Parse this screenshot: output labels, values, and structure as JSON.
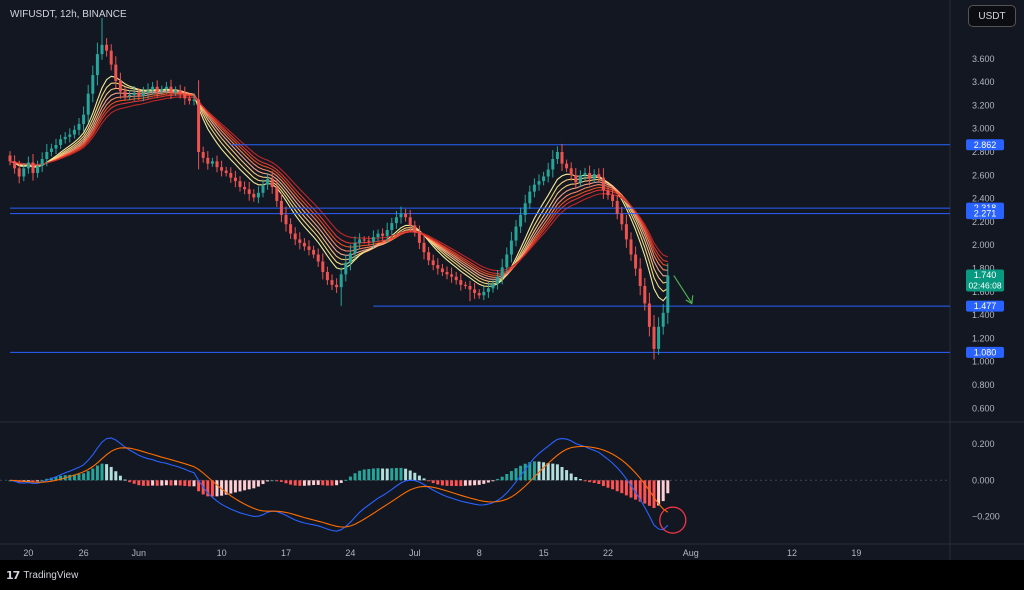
{
  "symbol_label": "WIFUSDT, 12h, BINANCE",
  "currency_button": "USDT",
  "brand": {
    "logo_glyph": "17",
    "name": "TradingView"
  },
  "colors": {
    "background": "#131722",
    "up_candle": "#26a69a",
    "down_candle": "#ef5350",
    "level_line": "#2962ff",
    "label_blue": "#2962ff",
    "label_green": "#089981",
    "macd_line": "#2962ff",
    "signal_line": "#ff6d00",
    "annotation": "#f23645",
    "arrow": "#4caf50"
  },
  "chart_data": [
    {
      "type": "candlestick",
      "title": "WIFUSDT, 12h, BINANCE",
      "ylim": [
        0.5,
        3.95
      ],
      "y_ticks": [
        "3.600",
        "3.400",
        "3.200",
        "3.000",
        "2.800",
        "2.600",
        "2.400",
        "2.200",
        "2.000",
        "1.800",
        "1.600",
        "1.400",
        "1.200",
        "1.000",
        "0.800",
        "0.600"
      ],
      "x_ticks": [
        {
          "label": "20",
          "index": 4
        },
        {
          "label": "26",
          "index": 16
        },
        {
          "label": "Jun",
          "index": 28
        },
        {
          "label": "10",
          "index": 46
        },
        {
          "label": "17",
          "index": 60
        },
        {
          "label": "24",
          "index": 74
        },
        {
          "label": "Jul",
          "index": 88
        },
        {
          "label": "8",
          "index": 102
        },
        {
          "label": "15",
          "index": 116
        },
        {
          "label": "22",
          "index": 130
        },
        {
          "label": "Aug",
          "index": 148
        },
        {
          "label": "12",
          "index": 170
        },
        {
          "label": "19",
          "index": 184
        }
      ],
      "closes": [
        2.72,
        2.66,
        2.59,
        2.66,
        2.71,
        2.62,
        2.68,
        2.74,
        2.8,
        2.83,
        2.86,
        2.91,
        2.93,
        2.95,
        2.99,
        3.04,
        3.12,
        3.3,
        3.46,
        3.64,
        3.72,
        3.67,
        3.55,
        3.41,
        3.32,
        3.28,
        3.29,
        3.31,
        3.28,
        3.31,
        3.33,
        3.36,
        3.32,
        3.34,
        3.36,
        3.31,
        3.33,
        3.3,
        3.26,
        3.24,
        3.25,
        2.8,
        2.75,
        2.7,
        2.72,
        2.67,
        2.64,
        2.62,
        2.58,
        2.55,
        2.5,
        2.48,
        2.44,
        2.41,
        2.45,
        2.52,
        2.57,
        2.5,
        2.38,
        2.26,
        2.18,
        2.1,
        2.05,
        2.02,
        1.99,
        1.96,
        1.92,
        1.86,
        1.77,
        1.7,
        1.66,
        1.64,
        1.75,
        1.85,
        1.93,
        2.02,
        2.05,
        2.04,
        2.03,
        2.07,
        2.1,
        2.08,
        2.13,
        2.19,
        2.24,
        2.27,
        2.24,
        2.17,
        2.11,
        2.02,
        1.94,
        1.87,
        1.83,
        1.8,
        1.77,
        1.75,
        1.73,
        1.7,
        1.66,
        1.65,
        1.62,
        1.59,
        1.57,
        1.6,
        1.63,
        1.67,
        1.73,
        1.81,
        1.92,
        2.04,
        2.16,
        2.26,
        2.36,
        2.46,
        2.52,
        2.55,
        2.59,
        2.65,
        2.74,
        2.8,
        2.7,
        2.66,
        2.6,
        2.54,
        2.6,
        2.62,
        2.57,
        2.61,
        2.58,
        2.47,
        2.43,
        2.38,
        2.27,
        2.18,
        2.05,
        1.92,
        1.8,
        1.65,
        1.5,
        1.3,
        1.11,
        1.3,
        1.42,
        1.74
      ],
      "horizontal_levels": [
        2.862,
        2.318,
        2.271,
        1.477,
        1.08
      ],
      "price_labels": [
        {
          "text": "2.862",
          "value": 2.862,
          "style": "blue"
        },
        {
          "text": "2.318",
          "value": 2.318,
          "style": "blue"
        },
        {
          "text": "2.271",
          "value": 2.271,
          "style": "blue"
        },
        {
          "text": "1.740",
          "value": 1.74,
          "style": "green",
          "sub": "02:46:08"
        },
        {
          "text": "1.477",
          "value": 1.477,
          "style": "blue"
        },
        {
          "text": "1.080",
          "value": 1.08,
          "style": "blue"
        }
      ]
    },
    {
      "type": "macd",
      "ylim": [
        -0.33,
        0.3
      ],
      "y_ticks": [
        "0.200",
        "0.000",
        "−0.200"
      ],
      "annotation": "circle highlight near latest MACD value"
    }
  ]
}
